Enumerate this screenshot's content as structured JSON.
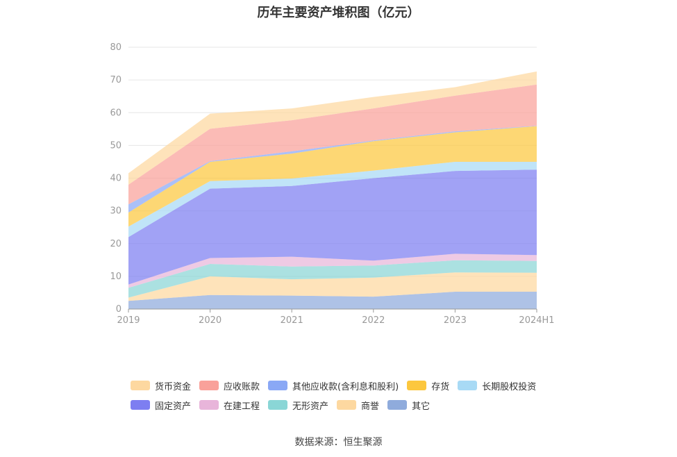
{
  "title": "历年主要资产堆积图（亿元）",
  "source": "数据来源：恒生聚源",
  "chart_data": {
    "type": "area",
    "stacked": true,
    "x": [
      "2019",
      "2020",
      "2021",
      "2022",
      "2023",
      "2024H1"
    ],
    "ylim": [
      0,
      80
    ],
    "yticks": [
      0,
      10,
      20,
      30,
      40,
      50,
      60,
      70,
      80
    ],
    "grid": true,
    "legend_position": "bottom",
    "series": [
      {
        "name": "其它",
        "color": "#8fabdc",
        "values": [
          2.5,
          4.3,
          4.1,
          3.8,
          5.3,
          5.3
        ]
      },
      {
        "name": "商誉",
        "color": "#fdd8a0",
        "values": [
          1.0,
          5.7,
          5.0,
          5.8,
          5.9,
          5.8
        ]
      },
      {
        "name": "无形资产",
        "color": "#8ad6d6",
        "values": [
          3.0,
          3.8,
          3.9,
          3.7,
          3.7,
          3.6
        ]
      },
      {
        "name": "在建工程",
        "color": "#e8b5da",
        "values": [
          1.0,
          1.8,
          3.0,
          1.5,
          2.0,
          1.8
        ]
      },
      {
        "name": "固定资产",
        "color": "#7d7ef1",
        "values": [
          14.5,
          21.2,
          21.6,
          25.2,
          25.3,
          26.1
        ]
      },
      {
        "name": "长期股权投资",
        "color": "#a8daf5",
        "values": [
          3.2,
          2.3,
          2.3,
          2.3,
          2.8,
          2.4
        ]
      },
      {
        "name": "存货",
        "color": "#fcc73e",
        "values": [
          4.3,
          5.9,
          7.6,
          9.0,
          9.0,
          10.9
        ]
      },
      {
        "name": "其他应收款(含利息和股利)",
        "color": "#8aa8f5",
        "values": [
          2.5,
          0.2,
          0.7,
          0.2,
          0.3,
          0.1
        ]
      },
      {
        "name": "应收账款",
        "color": "#f9a19a",
        "values": [
          6.0,
          9.9,
          9.5,
          9.8,
          10.9,
          12.6
        ]
      },
      {
        "name": "货币资金",
        "color": "#fdd8a0",
        "values": [
          3.5,
          4.6,
          3.6,
          3.5,
          2.6,
          4.0
        ]
      }
    ]
  },
  "legend": {
    "row1": [
      "货币资金",
      "应收账款",
      "其他应收款(含利息和股利)",
      "存货",
      "长期股权投资"
    ],
    "row2": [
      "固定资产",
      "在建工程",
      "无形资产",
      "商誉",
      "其它"
    ]
  }
}
